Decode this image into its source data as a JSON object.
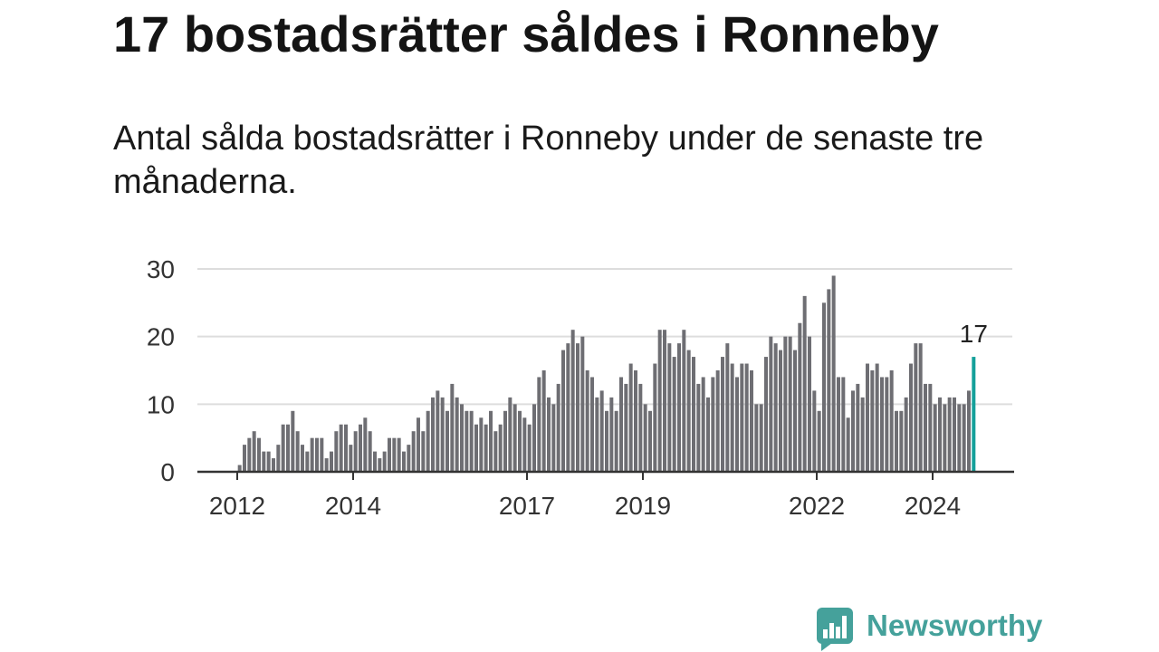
{
  "chart_data": {
    "type": "bar",
    "title": "17 bostadsrätter såldes i Ronneby",
    "subtitle": "Antal sålda bostadsrätter i Ronneby under de senaste tre månaderna.",
    "xlabel": "",
    "ylabel": "",
    "x": [
      "2012-01",
      "2012-02",
      "2012-03",
      "2012-04",
      "2012-05",
      "2012-06",
      "2012-07",
      "2012-08",
      "2012-09",
      "2012-10",
      "2012-11",
      "2012-12",
      "2013-01",
      "2013-02",
      "2013-03",
      "2013-04",
      "2013-05",
      "2013-06",
      "2013-07",
      "2013-08",
      "2013-09",
      "2013-10",
      "2013-11",
      "2013-12",
      "2014-01",
      "2014-02",
      "2014-03",
      "2014-04",
      "2014-05",
      "2014-06",
      "2014-07",
      "2014-08",
      "2014-09",
      "2014-10",
      "2014-11",
      "2014-12",
      "2015-01",
      "2015-02",
      "2015-03",
      "2015-04",
      "2015-05",
      "2015-06",
      "2015-07",
      "2015-08",
      "2015-09",
      "2015-10",
      "2015-11",
      "2015-12",
      "2016-01",
      "2016-02",
      "2016-03",
      "2016-04",
      "2016-05",
      "2016-06",
      "2016-07",
      "2016-08",
      "2016-09",
      "2016-10",
      "2016-11",
      "2016-12",
      "2017-01",
      "2017-02",
      "2017-03",
      "2017-04",
      "2017-05",
      "2017-06",
      "2017-07",
      "2017-08",
      "2017-09",
      "2017-10",
      "2017-11",
      "2017-12",
      "2018-01",
      "2018-02",
      "2018-03",
      "2018-04",
      "2018-05",
      "2018-06",
      "2018-07",
      "2018-08",
      "2018-09",
      "2018-10",
      "2018-11",
      "2018-12",
      "2019-01",
      "2019-02",
      "2019-03",
      "2019-04",
      "2019-05",
      "2019-06",
      "2019-07",
      "2019-08",
      "2019-09",
      "2019-10",
      "2019-11",
      "2019-12",
      "2020-01",
      "2020-02",
      "2020-03",
      "2020-04",
      "2020-05",
      "2020-06",
      "2020-07",
      "2020-08",
      "2020-09",
      "2020-10",
      "2020-11",
      "2020-12",
      "2021-01",
      "2021-02",
      "2021-03",
      "2021-04",
      "2021-05",
      "2021-06",
      "2021-07",
      "2021-08",
      "2021-09",
      "2021-10",
      "2021-11",
      "2021-12",
      "2022-01",
      "2022-02",
      "2022-03",
      "2022-04",
      "2022-05",
      "2022-06",
      "2022-07",
      "2022-08",
      "2022-09",
      "2022-10",
      "2022-11",
      "2022-12",
      "2023-01",
      "2023-02",
      "2023-03",
      "2023-04",
      "2023-05",
      "2023-06",
      "2023-07",
      "2023-08",
      "2023-09",
      "2023-10",
      "2023-11",
      "2023-12",
      "2024-01",
      "2024-02",
      "2024-03",
      "2024-04",
      "2024-05",
      "2024-06",
      "2024-07",
      "2024-08",
      "2024-09"
    ],
    "values": [
      1,
      4,
      5,
      6,
      5,
      3,
      3,
      2,
      4,
      7,
      7,
      9,
      6,
      4,
      3,
      5,
      5,
      5,
      2,
      3,
      6,
      7,
      7,
      4,
      6,
      7,
      8,
      6,
      3,
      2,
      3,
      5,
      5,
      5,
      3,
      4,
      6,
      8,
      6,
      9,
      11,
      12,
      11,
      9,
      13,
      11,
      10,
      9,
      9,
      7,
      8,
      7,
      9,
      6,
      7,
      9,
      11,
      10,
      9,
      8,
      7,
      10,
      14,
      15,
      11,
      10,
      13,
      18,
      19,
      21,
      19,
      20,
      15,
      14,
      11,
      12,
      9,
      11,
      9,
      14,
      13,
      16,
      15,
      13,
      10,
      9,
      16,
      21,
      21,
      19,
      17,
      19,
      21,
      18,
      17,
      13,
      14,
      11,
      14,
      15,
      17,
      19,
      16,
      14,
      16,
      16,
      15,
      10,
      10,
      17,
      20,
      19,
      18,
      20,
      20,
      18,
      22,
      26,
      20,
      12,
      9,
      25,
      27,
      29,
      14,
      14,
      8,
      12,
      13,
      11,
      16,
      15,
      16,
      14,
      14,
      15,
      9,
      9,
      11,
      16,
      19,
      19,
      13,
      13,
      10,
      11,
      10,
      11,
      11,
      10,
      10,
      12,
      17
    ],
    "x_tick_labels": [
      "2012",
      "2014",
      "2017",
      "2019",
      "2022",
      "2024"
    ],
    "y_ticks": [
      0,
      10,
      20,
      30
    ],
    "ylim": [
      0,
      30
    ],
    "grid": true,
    "legend": "none",
    "highlight": {
      "x": "2024-09",
      "label": "17"
    },
    "colors": {
      "bar": "#6e6e73",
      "highlight": "#14a09a",
      "grid": "#dddddd",
      "axis": "#333333"
    }
  },
  "logo": {
    "text": "Newsworthy",
    "icon": "chart-bubble-icon",
    "color": "#45a19b"
  }
}
